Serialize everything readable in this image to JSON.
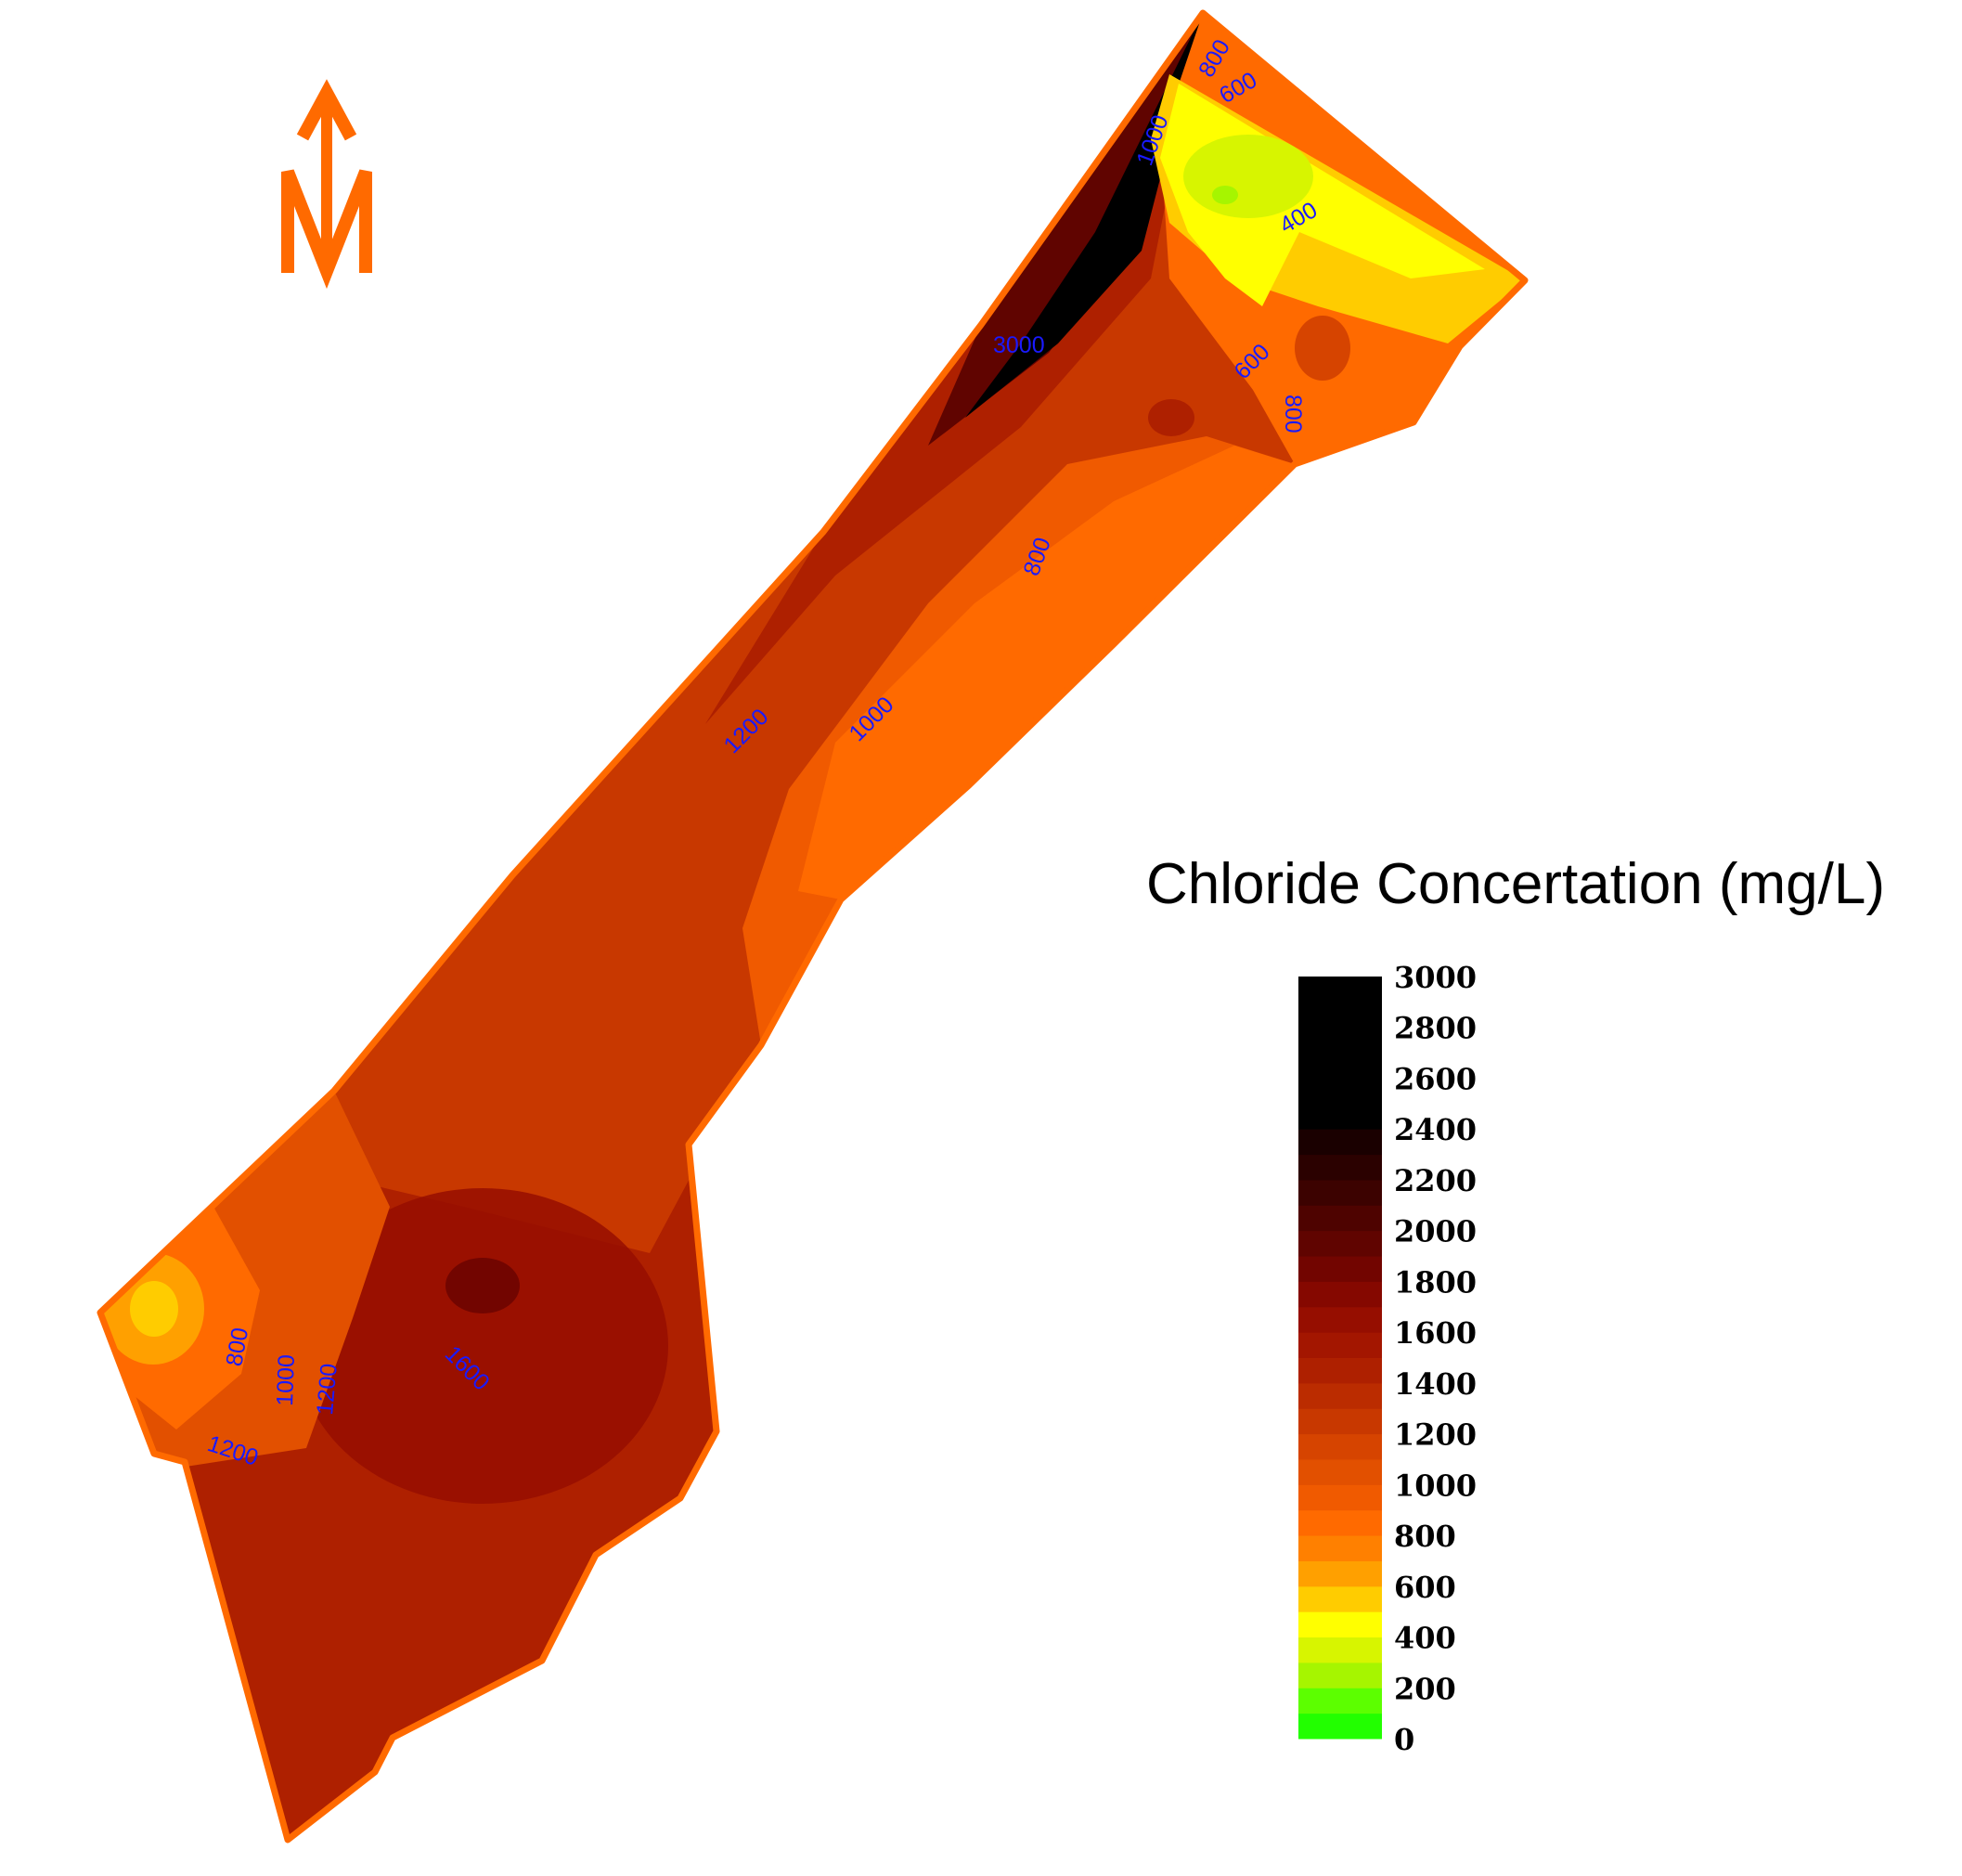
{
  "title": "Chloride Concertation (mg/L)",
  "north_arrow": {
    "letter": "N",
    "icon": "north-arrow-icon",
    "color": "#ff6a00"
  },
  "legend": {
    "ticks": [
      "3000",
      "2800",
      "2600",
      "2400",
      "2200",
      "2000",
      "1800",
      "1600",
      "1400",
      "1200",
      "1000",
      "800",
      "600",
      "400",
      "200",
      "0"
    ],
    "bands": [
      {
        "from": 0,
        "to": 100,
        "color": "#22ff00"
      },
      {
        "from": 100,
        "to": 200,
        "color": "#5cff00"
      },
      {
        "from": 200,
        "to": 300,
        "color": "#a6f500"
      },
      {
        "from": 300,
        "to": 400,
        "color": "#d7f500"
      },
      {
        "from": 400,
        "to": 500,
        "color": "#ffff00"
      },
      {
        "from": 500,
        "to": 600,
        "color": "#ffcc00"
      },
      {
        "from": 600,
        "to": 700,
        "color": "#ffa000"
      },
      {
        "from": 700,
        "to": 800,
        "color": "#ff8000"
      },
      {
        "from": 800,
        "to": 900,
        "color": "#ff6a00"
      },
      {
        "from": 900,
        "to": 1000,
        "color": "#f05a00"
      },
      {
        "from": 1000,
        "to": 1100,
        "color": "#e25000"
      },
      {
        "from": 1100,
        "to": 1200,
        "color": "#d64400"
      },
      {
        "from": 1200,
        "to": 1300,
        "color": "#c83800"
      },
      {
        "from": 1300,
        "to": 1400,
        "color": "#bb2c00"
      },
      {
        "from": 1400,
        "to": 1500,
        "color": "#ae2000"
      },
      {
        "from": 1500,
        "to": 1600,
        "color": "#a31600"
      },
      {
        "from": 1600,
        "to": 1700,
        "color": "#960e00"
      },
      {
        "from": 1700,
        "to": 1800,
        "color": "#850800"
      },
      {
        "from": 1800,
        "to": 1900,
        "color": "#720500"
      },
      {
        "from": 1900,
        "to": 2000,
        "color": "#600400"
      },
      {
        "from": 2000,
        "to": 2100,
        "color": "#4e0300"
      },
      {
        "from": 2100,
        "to": 2200,
        "color": "#3c0200"
      },
      {
        "from": 2200,
        "to": 2300,
        "color": "#2b0100"
      },
      {
        "from": 2300,
        "to": 2400,
        "color": "#1a0000"
      },
      {
        "from": 2400,
        "to": 3000,
        "color": "#000000"
      }
    ]
  },
  "contour_labels": [
    "800",
    "600",
    "1000",
    "400",
    "3000",
    "600",
    "800",
    "800",
    "1200",
    "1000",
    "800",
    "1000",
    "1200",
    "1600",
    "1200"
  ],
  "colors": {
    "boundary": "#ff6a00",
    "label_text": "#1a1aff"
  }
}
